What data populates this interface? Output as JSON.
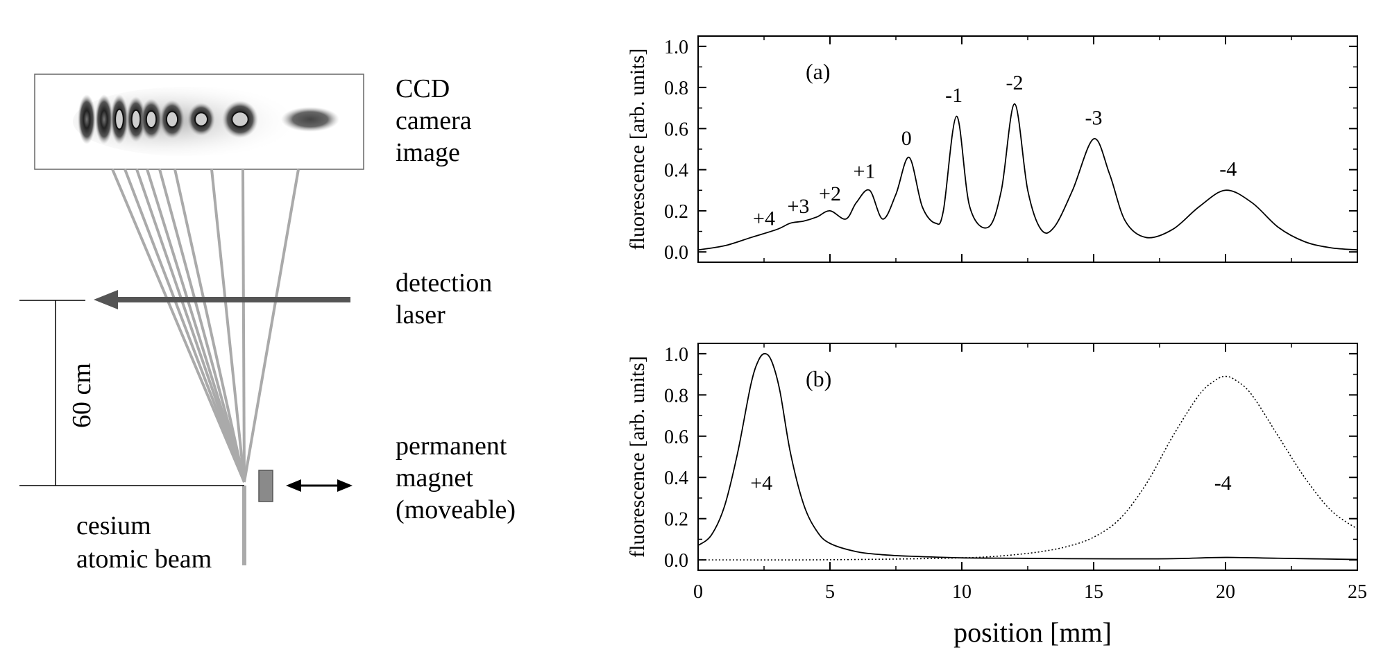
{
  "schematic": {
    "ccd_label": [
      "CCD",
      "camera",
      "image"
    ],
    "laser_label": [
      "detection",
      "laser"
    ],
    "magnet_label": [
      "permanent",
      "magnet",
      "(moveable)"
    ],
    "beam_label": [
      "cesium",
      "atomic beam"
    ],
    "distance_label": "60 cm",
    "ccd_blobs": [
      "+4",
      "+3",
      "+2",
      "+1",
      "0",
      "-1",
      "-2",
      "-3",
      "-4"
    ],
    "colors": {
      "beam": "#aaaaaa",
      "laser": "#555555",
      "magnet": "#8a8a8a"
    }
  },
  "chart_data": [
    {
      "type": "line",
      "panel_label": "(a)",
      "xlabel": "",
      "ylabel": "fluorescence [arb. units]",
      "xlim": [
        0,
        25
      ],
      "ylim": [
        -0.05,
        1.05
      ],
      "x_ticks": [
        0,
        5,
        10,
        15,
        20,
        25
      ],
      "y_ticks": [
        "0.0",
        "0.2",
        "0.4",
        "0.6",
        "0.8",
        "1.0"
      ],
      "series": [
        {
          "style": "solid",
          "x": [
            0,
            1,
            2,
            3,
            3.5,
            4,
            4.5,
            5,
            5.6,
            6,
            6.5,
            7,
            7.5,
            8,
            8.5,
            9,
            9.3,
            9.8,
            10.3,
            11,
            11.5,
            12,
            12.5,
            13,
            13.5,
            14.2,
            15,
            15.6,
            16.2,
            17,
            18,
            19,
            20,
            21,
            22,
            23,
            24,
            25
          ],
          "y": [
            0.01,
            0.03,
            0.07,
            0.11,
            0.14,
            0.15,
            0.17,
            0.2,
            0.16,
            0.24,
            0.3,
            0.16,
            0.28,
            0.46,
            0.22,
            0.14,
            0.2,
            0.66,
            0.22,
            0.12,
            0.3,
            0.72,
            0.3,
            0.11,
            0.12,
            0.3,
            0.55,
            0.38,
            0.15,
            0.07,
            0.11,
            0.22,
            0.3,
            0.24,
            0.12,
            0.05,
            0.02,
            0.01
          ]
        }
      ],
      "annotations": [
        {
          "text": "+4",
          "x": 2.5,
          "y": 0.13
        },
        {
          "text": "+3",
          "x": 3.8,
          "y": 0.19
        },
        {
          "text": "+2",
          "x": 5.0,
          "y": 0.25
        },
        {
          "text": "+1",
          "x": 6.3,
          "y": 0.36
        },
        {
          "text": "0",
          "x": 7.9,
          "y": 0.52
        },
        {
          "text": "-1",
          "x": 9.7,
          "y": 0.73
        },
        {
          "text": "-2",
          "x": 12.0,
          "y": 0.79
        },
        {
          "text": "-3",
          "x": 15.0,
          "y": 0.62
        },
        {
          "text": "-4",
          "x": 20.1,
          "y": 0.37
        }
      ]
    },
    {
      "type": "line",
      "panel_label": "(b)",
      "xlabel": "position [mm]",
      "ylabel": "fluorescence [arb. units]",
      "xlim": [
        0,
        25
      ],
      "ylim": [
        -0.05,
        1.05
      ],
      "x_ticks": [
        0,
        5,
        10,
        15,
        20,
        25
      ],
      "y_ticks": [
        "0.0",
        "0.2",
        "0.4",
        "0.6",
        "0.8",
        "1.0"
      ],
      "series": [
        {
          "style": "solid",
          "x": [
            0,
            0.5,
            1,
            1.5,
            2,
            2.3,
            2.55,
            2.8,
            3.1,
            3.5,
            4,
            4.5,
            5,
            6,
            7,
            8,
            10,
            12,
            14,
            16,
            18,
            20,
            22,
            25
          ],
          "y": [
            0.07,
            0.12,
            0.26,
            0.52,
            0.85,
            0.97,
            1.0,
            0.96,
            0.82,
            0.52,
            0.27,
            0.14,
            0.08,
            0.04,
            0.025,
            0.018,
            0.01,
            0.008,
            0.006,
            0.005,
            0.006,
            0.012,
            0.008,
            0.002
          ]
        },
        {
          "style": "dotted",
          "x": [
            0,
            2,
            4,
            6,
            8,
            10,
            11,
            12,
            13,
            14,
            15,
            16,
            17,
            18,
            19,
            19.6,
            20,
            20.4,
            21,
            22,
            23,
            24,
            25
          ],
          "y": [
            0.0,
            0.0,
            0.0,
            0.002,
            0.005,
            0.01,
            0.015,
            0.025,
            0.04,
            0.065,
            0.11,
            0.2,
            0.37,
            0.6,
            0.8,
            0.87,
            0.89,
            0.87,
            0.8,
            0.6,
            0.4,
            0.24,
            0.15
          ]
        }
      ],
      "annotations": [
        {
          "text": "+4",
          "x": 2.4,
          "y": 0.34
        },
        {
          "text": "-4",
          "x": 19.9,
          "y": 0.34
        }
      ]
    }
  ]
}
